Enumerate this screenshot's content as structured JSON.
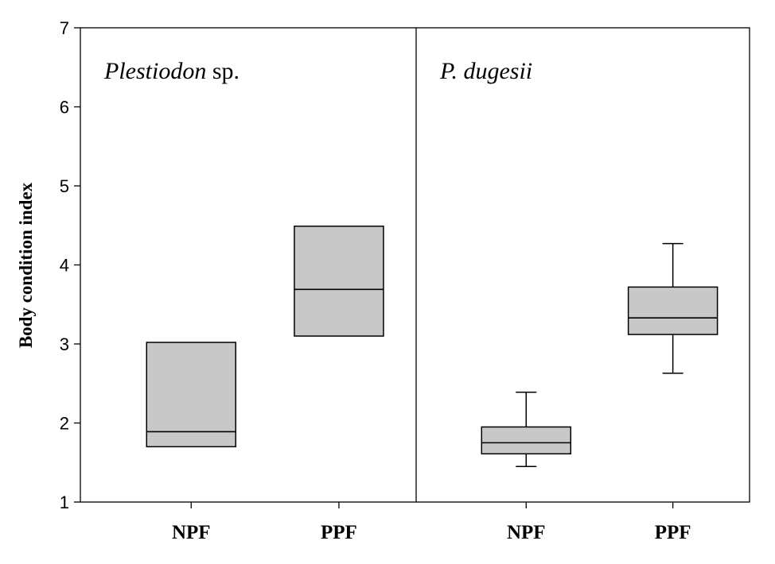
{
  "chart_data": {
    "type": "box",
    "ylabel": "Body condition index",
    "ylim": [
      1,
      7
    ],
    "yticks": [
      1,
      2,
      3,
      4,
      5,
      6,
      7
    ],
    "box_color": "#c8c8c8",
    "line_color": "#000000",
    "grid": false,
    "panels": [
      {
        "title_italic": "Plestiodon",
        "title_rest": " sp.",
        "groups": [
          {
            "label": "NPF",
            "whisker_low": null,
            "q1": 1.7,
            "median": 1.89,
            "q3": 3.02,
            "whisker_high": null
          },
          {
            "label": "PPF",
            "whisker_low": null,
            "q1": 3.1,
            "median": 3.69,
            "q3": 4.49,
            "whisker_high": null
          }
        ]
      },
      {
        "title_italic": "P. dugesii",
        "title_rest": "",
        "groups": [
          {
            "label": "NPF",
            "whisker_low": 1.45,
            "q1": 1.61,
            "median": 1.75,
            "q3": 1.95,
            "whisker_high": 2.39
          },
          {
            "label": "PPF",
            "whisker_low": 2.63,
            "q1": 3.12,
            "median": 3.33,
            "q3": 3.72,
            "whisker_high": 4.27
          }
        ]
      }
    ]
  }
}
